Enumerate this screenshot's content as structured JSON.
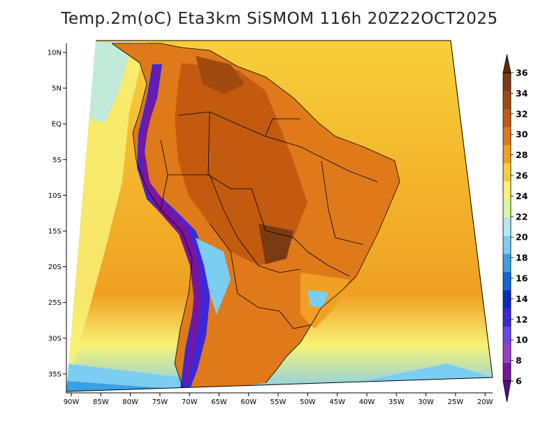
{
  "title": "Temp.2m(oC) Eta3km SiSMOM 116h 20Z22OCT2025",
  "lat_labels": [
    "10N",
    "5N",
    "EQ",
    "5S",
    "10S",
    "15S",
    "20S",
    "25S",
    "30S",
    "35S"
  ],
  "lon_labels": [
    "90W",
    "85W",
    "80W",
    "75W",
    "70W",
    "65W",
    "60W",
    "55W",
    "50W",
    "45W",
    "40W",
    "35W",
    "30W",
    "25W",
    "20W"
  ],
  "colorbar": {
    "labels": [
      "36",
      "34",
      "32",
      "30",
      "28",
      "26",
      "24",
      "22",
      "20",
      "18",
      "16",
      "14",
      "12",
      "10",
      "8",
      "6"
    ],
    "colors": [
      "#7a3a12",
      "#a04a10",
      "#c25a10",
      "#de7a1a",
      "#f0a022",
      "#f7cf3a",
      "#f8f276",
      "#d9f6a0",
      "#b3e8f5",
      "#7ccdf2",
      "#3aa0e6",
      "#1366d6",
      "#0a2ac0",
      "#3c28d8",
      "#6e46e8",
      "#9a40c8",
      "#7a15a0"
    ],
    "arrow_top_color": "#5a2c0c",
    "arrow_bottom_color": "#5a0f80"
  },
  "legend": {
    "ocean_north_color": "#f7cf3a",
    "ocean_south_color": "#7ccdf2",
    "land_color": "#de7a1a",
    "hot_land_color": "#c25a10",
    "andes_color": "#3c28d8",
    "andes_cold_color": "#7a15a0",
    "coast_color": "#000000"
  }
}
